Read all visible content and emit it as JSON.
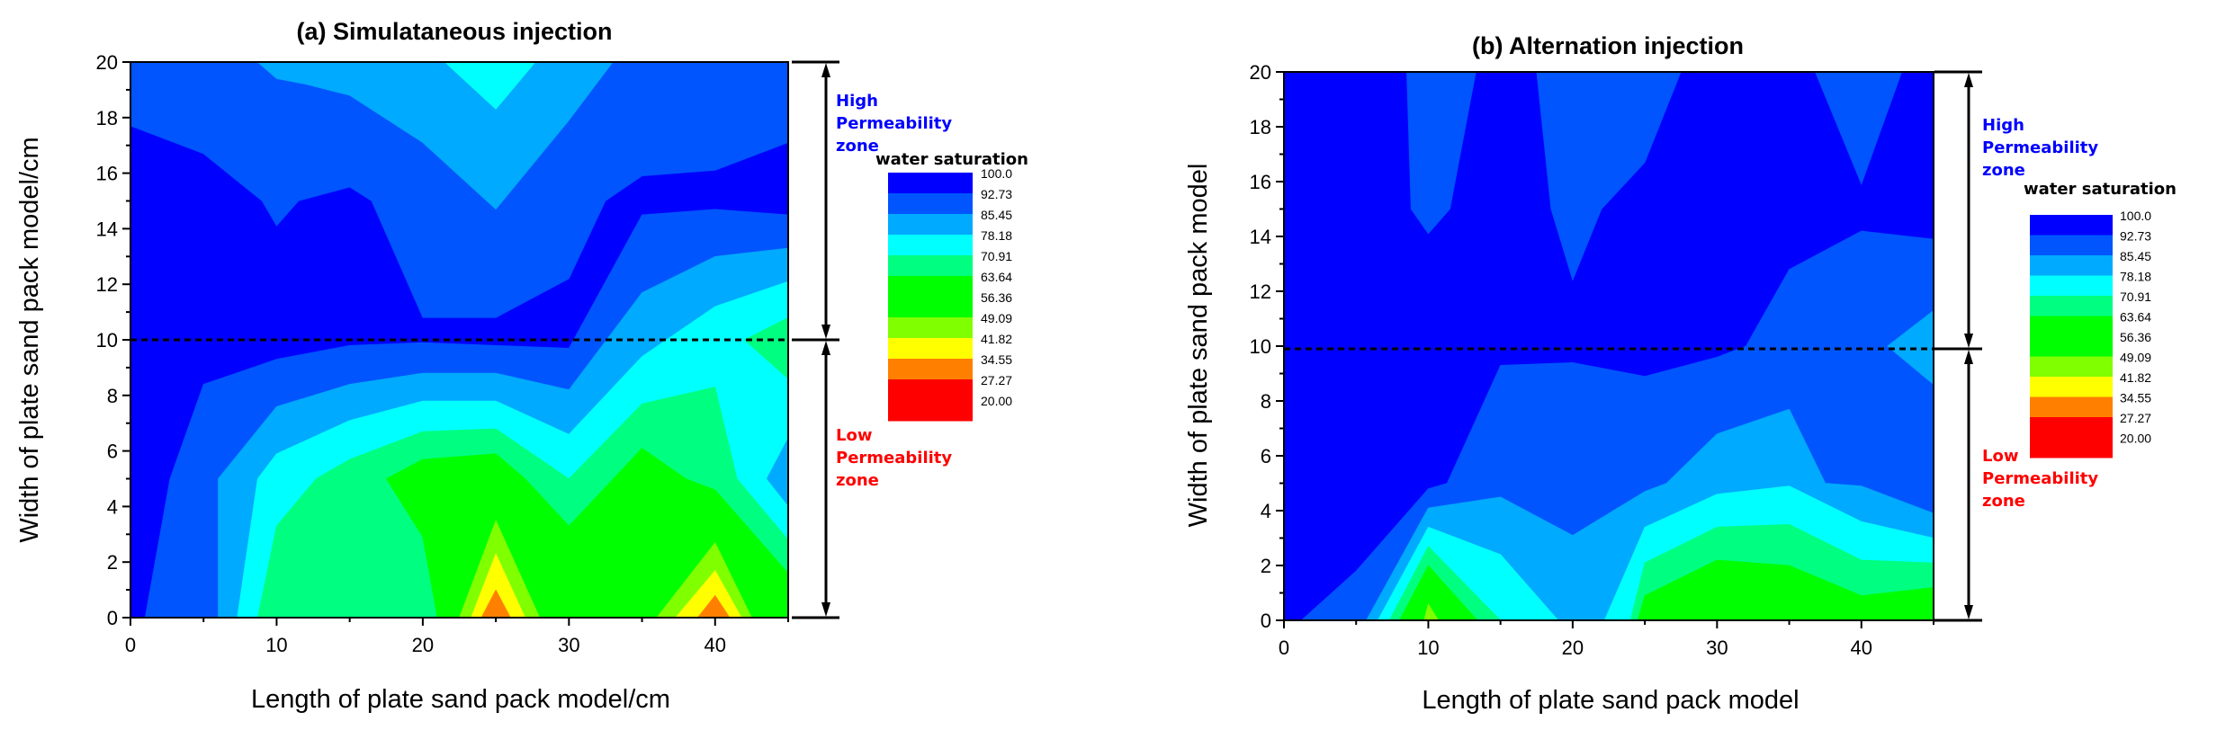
{
  "chart_data": [
    {
      "type": "contour",
      "title": "(a) Simulataneous injection",
      "xlabel": "Length of plate sand pack model/cm",
      "ylabel": "Width of plate sand pack model/cm",
      "xlim": [
        0,
        45
      ],
      "ylim": [
        0,
        20
      ],
      "xticks": [
        0,
        10,
        20,
        30,
        40
      ],
      "yticks": [
        0,
        2,
        4,
        6,
        8,
        10,
        12,
        14,
        16,
        18,
        20
      ],
      "divider_y": 10,
      "legend": {
        "title": "water saturation",
        "placement": "right"
      },
      "zones": {
        "high": [
          "High",
          "Permeability",
          "zone"
        ],
        "low": [
          "Low",
          "Permeability",
          "zone"
        ]
      },
      "base_color": "#0000ff",
      "regions": [
        {
          "below": 92.73,
          "color": "#0055ff",
          "polygon": [
            [
              0,
              20
            ],
            [
              0,
              17.7
            ],
            [
              5,
              16.7
            ],
            [
              9,
              15
            ],
            [
              10,
              14.1
            ],
            [
              11.5,
              15
            ],
            [
              15,
              15.5
            ],
            [
              16.5,
              15
            ],
            [
              20,
              10.8
            ],
            [
              25,
              10.8
            ],
            [
              30,
              12.2
            ],
            [
              32.5,
              15
            ],
            [
              35,
              15.9
            ],
            [
              40,
              16.1
            ],
            [
              45,
              17.1
            ],
            [
              45,
              20
            ]
          ]
        },
        {
          "below": 92.73,
          "color": "#0055ff",
          "polygon": [
            [
              1,
              0
            ],
            [
              2.7,
              5
            ],
            [
              5,
              8.4
            ],
            [
              10,
              9.3
            ],
            [
              15,
              9.8
            ],
            [
              20,
              9.9
            ],
            [
              25,
              9.8
            ],
            [
              30,
              9.7
            ],
            [
              35,
              14.5
            ],
            [
              40,
              14.7
            ],
            [
              45,
              14.5
            ],
            [
              45,
              0
            ]
          ]
        },
        {
          "below": 85.45,
          "color": "#00aaff",
          "polygon": [
            [
              8.7,
              20
            ],
            [
              10,
              19.4
            ],
            [
              12,
              19.2
            ],
            [
              15,
              18.8
            ],
            [
              20,
              17.1
            ],
            [
              25,
              14.7
            ],
            [
              30,
              17.9
            ],
            [
              33,
              20
            ]
          ]
        },
        {
          "below": 85.45,
          "color": "#00aaff",
          "polygon": [
            [
              6,
              0
            ],
            [
              6,
              5
            ],
            [
              10,
              7.6
            ],
            [
              15,
              8.4
            ],
            [
              20,
              8.8
            ],
            [
              25,
              8.8
            ],
            [
              30,
              8.2
            ],
            [
              35,
              11.7
            ],
            [
              40,
              13
            ],
            [
              45,
              13.3
            ],
            [
              45,
              0
            ]
          ]
        },
        {
          "below": 78.18,
          "color": "#00ffff",
          "polygon": [
            [
              21.5,
              20
            ],
            [
              25,
              18.3
            ],
            [
              27.7,
              20
            ]
          ]
        },
        {
          "below": 78.18,
          "color": "#00ffff",
          "polygon": [
            [
              7.3,
              0
            ],
            [
              8.7,
              5
            ],
            [
              10,
              5.9
            ],
            [
              15,
              7.1
            ],
            [
              20,
              7.8
            ],
            [
              25,
              7.8
            ],
            [
              30,
              6.6
            ],
            [
              35,
              9.4
            ],
            [
              40,
              11.2
            ],
            [
              45,
              12.1
            ],
            [
              45,
              6.5
            ],
            [
              43.5,
              5
            ],
            [
              45,
              4
            ],
            [
              45,
              0
            ]
          ]
        },
        {
          "below": 70.91,
          "color": "#00ff80",
          "polygon": [
            [
              8.7,
              0
            ],
            [
              10,
              3.3
            ],
            [
              12.7,
              5
            ],
            [
              15,
              5.7
            ],
            [
              20,
              6.7
            ],
            [
              25,
              6.8
            ],
            [
              30,
              5
            ],
            [
              35,
              7.7
            ],
            [
              40,
              8.3
            ],
            [
              41.5,
              5
            ],
            [
              45,
              2.8
            ],
            [
              45,
              0
            ]
          ]
        },
        {
          "below": 70.91,
          "color": "#00ff80",
          "polygon": [
            [
              42,
              10
            ],
            [
              45,
              10.8
            ],
            [
              45,
              8.6
            ]
          ]
        },
        {
          "below": 63.64,
          "color": "#00ff00",
          "polygon": [
            [
              21,
              0
            ],
            [
              20,
              2.9
            ],
            [
              17.5,
              5
            ],
            [
              20,
              5.7
            ],
            [
              25,
              5.9
            ],
            [
              27,
              5
            ],
            [
              30,
              3.3
            ],
            [
              35,
              6.1
            ],
            [
              38,
              5
            ],
            [
              40,
              4.6
            ],
            [
              45,
              1.6
            ],
            [
              45,
              0
            ]
          ]
        },
        {
          "below": 49.09,
          "color": "#80ff00",
          "polygon": [
            [
              22.5,
              0
            ],
            [
              25,
              3.5
            ],
            [
              28,
              0
            ]
          ]
        },
        {
          "below": 49.09,
          "color": "#80ff00",
          "polygon": [
            [
              36,
              0
            ],
            [
              40,
              2.7
            ],
            [
              42.5,
              0
            ]
          ]
        },
        {
          "below": 41.82,
          "color": "#ffff00",
          "polygon": [
            [
              23.3,
              0
            ],
            [
              25,
              2.3
            ],
            [
              27,
              0
            ]
          ]
        },
        {
          "below": 41.82,
          "color": "#ffff00",
          "polygon": [
            [
              37.3,
              0
            ],
            [
              40,
              1.7
            ],
            [
              41.8,
              0
            ]
          ]
        },
        {
          "below": 34.55,
          "color": "#ff8000",
          "polygon": [
            [
              24,
              0
            ],
            [
              25,
              1
            ],
            [
              26,
              0
            ]
          ]
        },
        {
          "below": 34.55,
          "color": "#ff8000",
          "polygon": [
            [
              38.8,
              0
            ],
            [
              40,
              0.8
            ],
            [
              41,
              0
            ]
          ]
        }
      ]
    },
    {
      "type": "contour",
      "title": "(b) Alternation injection",
      "xlabel": "Length of plate sand pack model",
      "ylabel": "Width of plate sand pack model",
      "xlim": [
        0,
        45
      ],
      "ylim": [
        0,
        20
      ],
      "xticks": [
        0,
        10,
        20,
        30,
        40
      ],
      "yticks": [
        0,
        2,
        4,
        6,
        8,
        10,
        12,
        14,
        16,
        18,
        20
      ],
      "divider_y": 9.9,
      "legend": {
        "title": "water saturation",
        "placement": "right"
      },
      "zones": {
        "high": [
          "High",
          "Permeability",
          "zone"
        ],
        "low": [
          "Low",
          "Permeability",
          "zone"
        ]
      },
      "base_color": "#0000ff",
      "regions": [
        {
          "below": 92.73,
          "color": "#0055ff",
          "polygon": [
            [
              8.5,
              20
            ],
            [
              8.8,
              15
            ],
            [
              10,
              14.1
            ],
            [
              11.5,
              15
            ],
            [
              13.3,
              20
            ]
          ]
        },
        {
          "below": 92.73,
          "color": "#0055ff",
          "polygon": [
            [
              17.5,
              20
            ],
            [
              18.5,
              15
            ],
            [
              20,
              12.4
            ],
            [
              22,
              15
            ],
            [
              25,
              16.7
            ],
            [
              27.5,
              20
            ]
          ]
        },
        {
          "below": 92.73,
          "color": "#0055ff",
          "polygon": [
            [
              36.8,
              20
            ],
            [
              40,
              15.9
            ],
            [
              42.8,
              20
            ]
          ]
        },
        {
          "below": 92.73,
          "color": "#0055ff",
          "polygon": [
            [
              1.2,
              0
            ],
            [
              5,
              1.8
            ],
            [
              10,
              4.8
            ],
            [
              11.3,
              5
            ],
            [
              15,
              9.3
            ],
            [
              20,
              9.4
            ],
            [
              25,
              8.9
            ],
            [
              30,
              9.6
            ],
            [
              32,
              10
            ],
            [
              35,
              12.8
            ],
            [
              40,
              14.2
            ],
            [
              45,
              13.9
            ],
            [
              45,
              0
            ]
          ]
        },
        {
          "below": 85.45,
          "color": "#00aaff",
          "polygon": [
            [
              5.7,
              0
            ],
            [
              10,
              4.1
            ],
            [
              15,
              4.5
            ],
            [
              20,
              3.1
            ],
            [
              25,
              4.7
            ],
            [
              26.5,
              5
            ],
            [
              30,
              6.8
            ],
            [
              35,
              7.7
            ],
            [
              37.5,
              5
            ],
            [
              40,
              4.9
            ],
            [
              45,
              3.9
            ],
            [
              45,
              0
            ]
          ]
        },
        {
          "below": 85.45,
          "color": "#00aaff",
          "polygon": [
            [
              41.8,
              10
            ],
            [
              45,
              11.3
            ],
            [
              45,
              8.6
            ]
          ]
        },
        {
          "below": 78.18,
          "color": "#00ffff",
          "polygon": [
            [
              6.5,
              0
            ],
            [
              10,
              3.4
            ],
            [
              15,
              2.4
            ],
            [
              19,
              0
            ]
          ]
        },
        {
          "below": 78.18,
          "color": "#00ffff",
          "polygon": [
            [
              22.2,
              0
            ],
            [
              25,
              3.4
            ],
            [
              30,
              4.6
            ],
            [
              35,
              4.9
            ],
            [
              40,
              3.6
            ],
            [
              45,
              3
            ],
            [
              45,
              0
            ]
          ]
        },
        {
          "below": 70.91,
          "color": "#00ff80",
          "polygon": [
            [
              7.3,
              0
            ],
            [
              10,
              2.7
            ],
            [
              15,
              0
            ]
          ]
        },
        {
          "below": 70.91,
          "color": "#00ff80",
          "polygon": [
            [
              24,
              0
            ],
            [
              25,
              2.1
            ],
            [
              30,
              3.4
            ],
            [
              35,
              3.5
            ],
            [
              40,
              2.2
            ],
            [
              45,
              2.1
            ],
            [
              45,
              0
            ]
          ]
        },
        {
          "below": 63.64,
          "color": "#00ff00",
          "polygon": [
            [
              8,
              0
            ],
            [
              10,
              2
            ],
            [
              13.4,
              0
            ]
          ]
        },
        {
          "below": 63.64,
          "color": "#00ff00",
          "polygon": [
            [
              24.5,
              0
            ],
            [
              25,
              0.9
            ],
            [
              30,
              2.2
            ],
            [
              35,
              2
            ],
            [
              40,
              0.9
            ],
            [
              45,
              1.2
            ],
            [
              45,
              0
            ]
          ]
        },
        {
          "below": 49.09,
          "color": "#80ff00",
          "polygon": [
            [
              9.7,
              0
            ],
            [
              10,
              0.6
            ],
            [
              10.7,
              0
            ]
          ]
        }
      ]
    }
  ],
  "legend_levels": [
    "100.0",
    "92.73",
    "85.45",
    "78.18",
    "70.91",
    "63.64",
    "56.36",
    "49.09",
    "41.82",
    "34.55",
    "27.27",
    "20.00"
  ],
  "legend_colors": [
    "#0000ff",
    "#0055ff",
    "#00aaff",
    "#00ffff",
    "#00ff80",
    "#00ff00",
    "#00ff00",
    "#80ff00",
    "#ffff00",
    "#ff8000",
    "#ff0000",
    "#ff0000"
  ],
  "zone_colors": {
    "high": "#0000ff",
    "low": "#ff0000"
  }
}
